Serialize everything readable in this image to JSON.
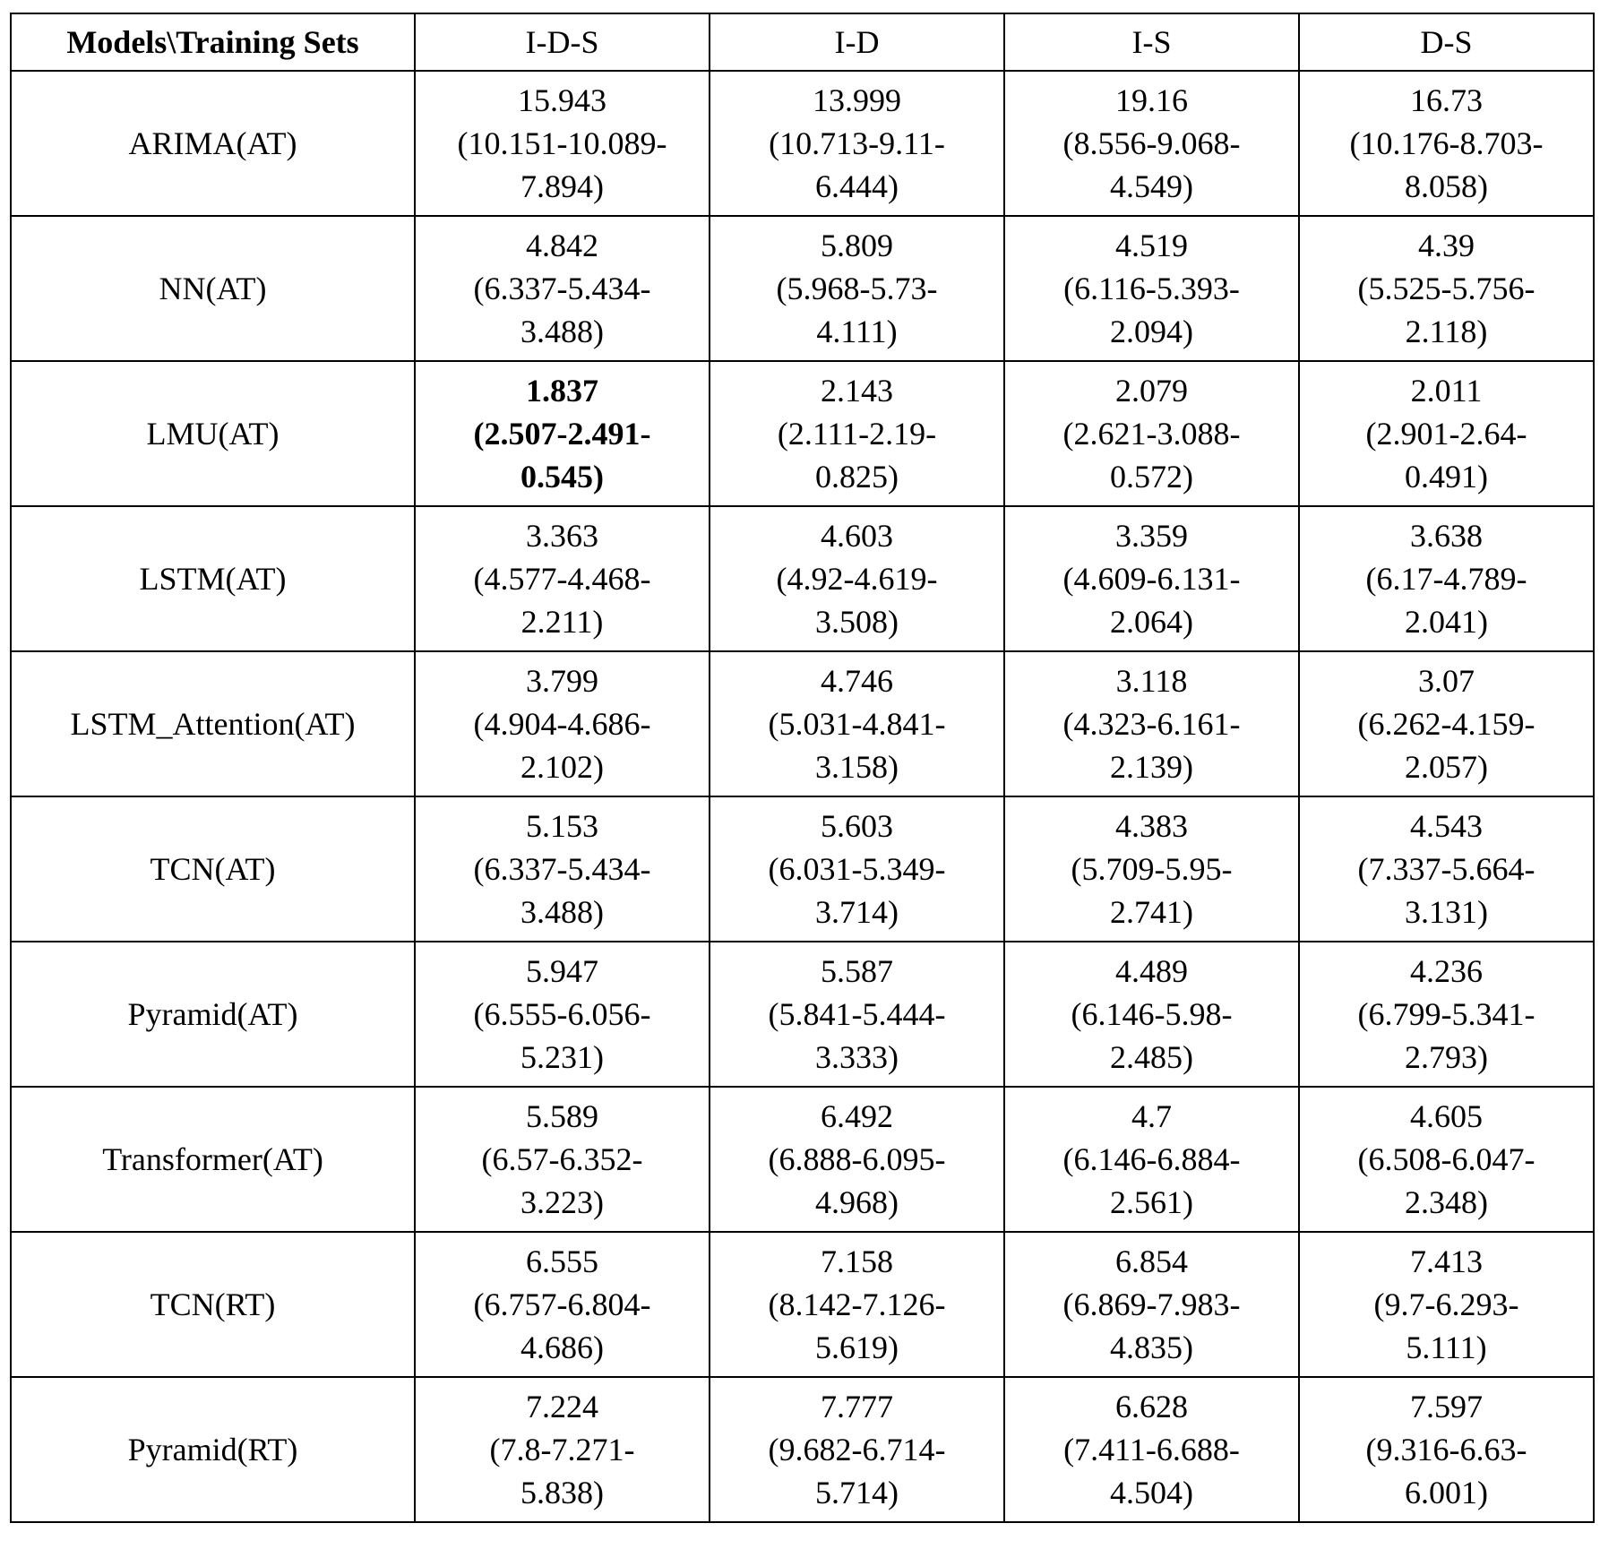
{
  "table": {
    "header": [
      "Models\\Training Sets",
      "I-D-S",
      "I-D",
      "I-S",
      "D-S"
    ],
    "rows": [
      [
        "ARIMA(AT)",
        [
          "15.943",
          "(10.151-10.089-",
          "7.894)"
        ],
        [
          "13.999",
          "(10.713-9.11-",
          "6.444)"
        ],
        [
          "19.16",
          "(8.556-9.068-",
          "4.549)"
        ],
        [
          "16.73",
          "(10.176-8.703-",
          "8.058)"
        ]
      ],
      [
        "NN(AT)",
        [
          "4.842",
          "(6.337-5.434-",
          "3.488)"
        ],
        [
          "5.809",
          "(5.968-5.73-",
          "4.111)"
        ],
        [
          "4.519",
          "(6.116-5.393-",
          "2.094)"
        ],
        [
          "4.39",
          "(5.525-5.756-",
          "2.118)"
        ]
      ],
      [
        "LMU(AT)",
        [
          "1.837",
          "(2.507-2.491-",
          "0.545)"
        ],
        [
          "2.143",
          "(2.111-2.19-",
          "0.825)"
        ],
        [
          "2.079",
          "(2.621-3.088-",
          "0.572)"
        ],
        [
          "2.011",
          "(2.901-2.64-",
          "0.491)"
        ]
      ],
      [
        "LSTM(AT)",
        [
          "3.363",
          "(4.577-4.468-",
          "2.211)"
        ],
        [
          "4.603",
          "(4.92-4.619-",
          "3.508)"
        ],
        [
          "3.359",
          "(4.609-6.131-",
          "2.064)"
        ],
        [
          "3.638",
          "(6.17-4.789-",
          "2.041)"
        ]
      ],
      [
        "LSTM_Attention(AT)",
        [
          "3.799",
          "(4.904-4.686-",
          "2.102)"
        ],
        [
          "4.746",
          "(5.031-4.841-",
          "3.158)"
        ],
        [
          "3.118",
          "(4.323-6.161-",
          "2.139)"
        ],
        [
          "3.07",
          "(6.262-4.159-",
          "2.057)"
        ]
      ],
      [
        "TCN(AT)",
        [
          "5.153",
          "(6.337-5.434-",
          "3.488)"
        ],
        [
          "5.603",
          "(6.031-5.349-",
          "3.714)"
        ],
        [
          "4.383",
          "(5.709-5.95-",
          "2.741)"
        ],
        [
          "4.543",
          "(7.337-5.664-",
          "3.131)"
        ]
      ],
      [
        "Pyramid(AT)",
        [
          "5.947",
          "(6.555-6.056-",
          "5.231)"
        ],
        [
          "5.587",
          "(5.841-5.444-",
          "3.333)"
        ],
        [
          "4.489",
          "(6.146-5.98-",
          "2.485)"
        ],
        [
          "4.236",
          "(6.799-5.341-",
          "2.793)"
        ]
      ],
      [
        "Transformer(AT)",
        [
          "5.589",
          "(6.57-6.352-",
          "3.223)"
        ],
        [
          "6.492",
          "(6.888-6.095-",
          "4.968)"
        ],
        [
          "4.7",
          "(6.146-6.884-",
          "2.561)"
        ],
        [
          "4.605",
          "(6.508-6.047-",
          "2.348)"
        ]
      ],
      [
        "TCN(RT)",
        [
          "6.555",
          "(6.757-6.804-",
          "4.686)"
        ],
        [
          "7.158",
          "(8.142-7.126-",
          "5.619)"
        ],
        [
          "6.854",
          "(6.869-7.983-",
          "4.835)"
        ],
        [
          "7.413",
          "(9.7-6.293-",
          "5.111)"
        ]
      ],
      [
        "Pyramid(RT)",
        [
          "7.224",
          "(7.8-7.271-",
          "5.838)"
        ],
        [
          "7.777",
          "(9.682-6.714-",
          "5.714)"
        ],
        [
          "6.628",
          "(7.411-6.688-",
          "4.504)"
        ],
        [
          "7.597",
          "(9.316-6.63-",
          "6.001)"
        ]
      ]
    ]
  }
}
